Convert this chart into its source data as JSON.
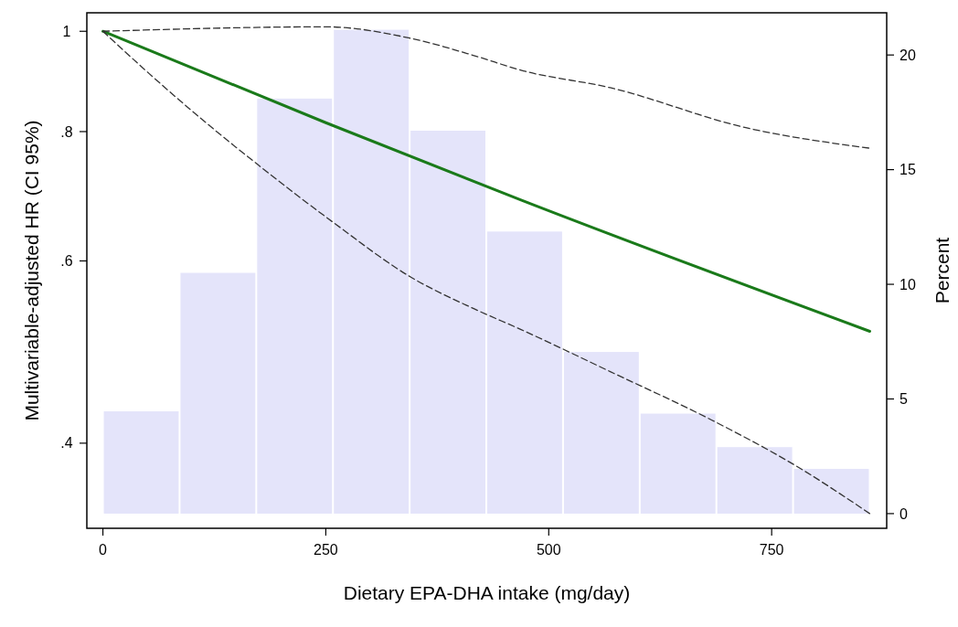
{
  "chart_data": {
    "type": "line",
    "xlabel": "Dietary EPA-DHA intake (mg/day)",
    "ylabel": "Multivariable-adjusted HR (CI 95%)",
    "y2label": "Percent",
    "log": "y",
    "grid": false,
    "xlim": [
      -18,
      879
    ],
    "xticks": [
      0,
      250,
      500,
      750
    ],
    "ylim": [
      0.331,
      1.042
    ],
    "yticks": [
      {
        "value": 0.4,
        "label": ".4"
      },
      {
        "value": 0.6,
        "label": ".6"
      },
      {
        "value": 0.8,
        "label": ".8"
      },
      {
        "value": 1,
        "label": "1"
      }
    ],
    "y2lim": [
      -0.64,
      21.84
    ],
    "y2ticks": [
      0,
      5,
      10,
      15,
      20
    ],
    "series": [
      {
        "type": "histogram",
        "axis": "y2",
        "color": "#e4e4fa",
        "bins": [
          0,
          86,
          172,
          258,
          344,
          430,
          516,
          602,
          688,
          774,
          860
        ],
        "values": [
          4.46,
          10.5,
          18.1,
          21.1,
          16.7,
          12.3,
          7.05,
          4.36,
          2.9,
          1.95
        ]
      },
      {
        "color": "#1a7a1a",
        "line_style": "solid",
        "x": [
          0,
          250,
          469,
          860
        ],
        "values": [
          1,
          0.816,
          0.687,
          0.513
        ]
      },
      {
        "color": "#333333",
        "line_style": "dashed",
        "x": [
          0,
          250,
          344,
          417,
          469,
          569,
          721,
          860
        ],
        "values": [
          1,
          1.01,
          0.985,
          0.947,
          0.917,
          0.882,
          0.807,
          0.771
        ]
      },
      {
        "color": "#333333",
        "line_style": "dashed",
        "x": [
          0,
          52,
          109,
          174,
          258,
          345,
          417,
          469,
          569,
          683,
          778,
          860
        ],
        "values": [
          1,
          0.91,
          0.825,
          0.743,
          0.654,
          0.579,
          0.539,
          0.515,
          0.469,
          0.421,
          0.38,
          0.342
        ]
      }
    ]
  }
}
